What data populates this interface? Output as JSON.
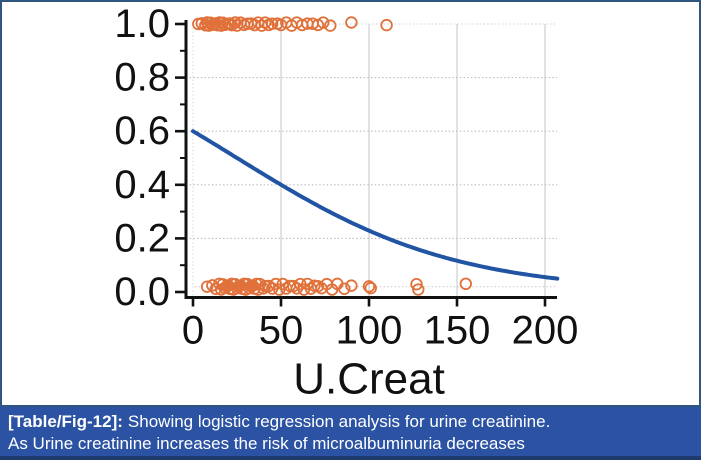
{
  "figure": {
    "caption": {
      "label": "[Table/Fig-12]:",
      "line1": "Showing logistic regression analysis for urine creatinine.",
      "line2": "As Urine creatinine increases the risk of microalbuminuria decreases"
    },
    "colors": {
      "figure_border": "#2e567e",
      "caption_bg": "#2b52a3",
      "caption_border_bottom": "#1f3a6d",
      "caption_text": "#ffffff",
      "curve_blue": "#2155a4",
      "point_orange": "#e0713a",
      "grid_gray": "#c9c9c9",
      "axis_black": "#111111"
    }
  },
  "chart_data": {
    "type": "scatter",
    "title": "",
    "xlabel": "U.Creat",
    "ylabel": "",
    "xlim": [
      0,
      200
    ],
    "ylim": [
      0,
      1
    ],
    "x_ticks": [
      0,
      50,
      100,
      150,
      200
    ],
    "x_tick_labels": [
      "0",
      "50",
      "100",
      "150",
      "200"
    ],
    "y_ticks": [
      0,
      0.2,
      0.4,
      0.6,
      0.8,
      1.0
    ],
    "y_tick_labels": [
      "0.0",
      "0.2",
      "0.4",
      "0.6",
      "0.8",
      "1.0"
    ],
    "y_minor_ticks": [
      0.1,
      0.3,
      0.5,
      0.7,
      0.9
    ],
    "grid": true,
    "legend": "none",
    "series": [
      {
        "name": "observed-outcome-1",
        "type": "scatter",
        "marker": "open-circle",
        "color": "#e0713a",
        "y": 1.0,
        "x": [
          3,
          5,
          7,
          8,
          9,
          10,
          11,
          12,
          13,
          14,
          15,
          16,
          17,
          18,
          20,
          21,
          22,
          24,
          25,
          27,
          29,
          31,
          33,
          35,
          37,
          39,
          41,
          43,
          45,
          48,
          50,
          53,
          56,
          59,
          62,
          65,
          68,
          71,
          74,
          78,
          90,
          110
        ]
      },
      {
        "name": "observed-outcome-0",
        "type": "scatter",
        "marker": "open-circle",
        "color": "#e0713a",
        "y": 0.02,
        "x": [
          8,
          11,
          13,
          15,
          16,
          17,
          18,
          19,
          20,
          21,
          22,
          23,
          24,
          25,
          26,
          27,
          28,
          29,
          30,
          31,
          32,
          33,
          34,
          35,
          36,
          37,
          38,
          40,
          41,
          43,
          45,
          47,
          49,
          51,
          53,
          55,
          57,
          59,
          61,
          63,
          65,
          67,
          69,
          71,
          73,
          76,
          79,
          82,
          86,
          90,
          100,
          101,
          127,
          128,
          155
        ]
      },
      {
        "name": "logistic-fit-curve",
        "type": "line",
        "color": "#2155a4",
        "x": [
          0,
          20,
          40,
          60,
          80,
          100,
          120,
          140,
          160,
          180,
          200
        ],
        "values": [
          0.6,
          0.52,
          0.44,
          0.362,
          0.291,
          0.229,
          0.177,
          0.134,
          0.101,
          0.075,
          0.056
        ]
      }
    ],
    "logistic_fit": {
      "intercept": 0.4055,
      "slope": -0.0162
    }
  }
}
